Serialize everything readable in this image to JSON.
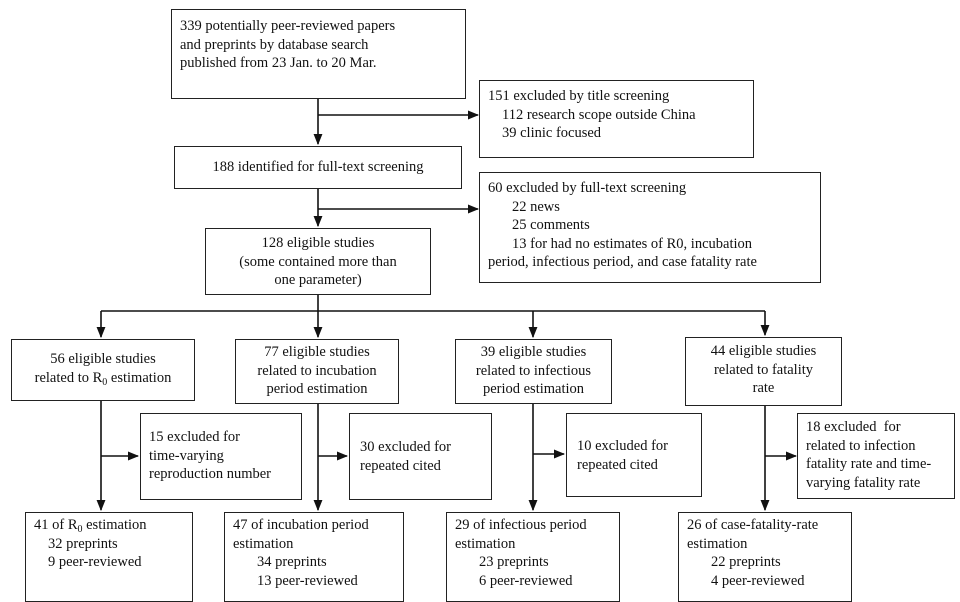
{
  "search": {
    "lines": [
      "339 potentially peer-reviewed papers",
      "and preprints by database search",
      "published from 23 Jan. to 20 Mar."
    ]
  },
  "excluded_title": {
    "lines": [
      "151 excluded by title screening",
      "112 research scope outside China",
      "39 clinic focused"
    ]
  },
  "fulltext": {
    "lines": [
      "188 identified for full-text screening"
    ]
  },
  "excluded_fulltext": {
    "lines": [
      "60 excluded by full-text screening",
      "22 news",
      "25 comments",
      "13 for had no estimates of R0, incubation",
      "period, infectious period, and case fatality rate"
    ]
  },
  "eligible": {
    "lines": [
      "128 eligible studies",
      "(some contained more than",
      "one parameter)"
    ]
  },
  "r0_studies": {
    "line1": "56 eligible studies",
    "line2_pre": "related to R",
    "line2_sub": "0",
    "line2_post": " estimation"
  },
  "incubation_studies": {
    "lines": [
      "77 eligible studies",
      "related to incubation",
      "period estimation"
    ]
  },
  "infectious_studies": {
    "lines": [
      "39 eligible studies",
      "related to infectious",
      "period estimation"
    ]
  },
  "fatality_studies": {
    "lines": [
      "44 eligible studies",
      "related to fatality",
      "rate"
    ]
  },
  "r0_excluded": {
    "lines": [
      "15 excluded for",
      "time-varying",
      "reproduction number"
    ]
  },
  "incubation_excluded": {
    "lines": [
      "30 excluded for",
      "repeated cited"
    ]
  },
  "infectious_excluded": {
    "lines": [
      "10 excluded for",
      "repeated cited"
    ]
  },
  "fatality_excluded": {
    "lines": [
      "18 excluded  for",
      "related to infection",
      "fatality rate and time-",
      "varying fatality rate"
    ]
  },
  "r0_final": {
    "line1_pre": "41 of R",
    "line1_sub": "0",
    "line1_post": " estimation",
    "line2": "32 preprints",
    "line3": "9 peer-reviewed"
  },
  "incubation_final": {
    "lines": [
      "47 of incubation period",
      "estimation",
      "34 preprints",
      "13 peer-reviewed"
    ]
  },
  "infectious_final": {
    "lines": [
      "29 of infectious period",
      "estimation",
      "23 preprints",
      "6 peer-reviewed"
    ]
  },
  "fatality_final": {
    "lines": [
      "26 of case-fatality-rate",
      "estimation",
      "22 preprints",
      "4 peer-reviewed"
    ]
  }
}
